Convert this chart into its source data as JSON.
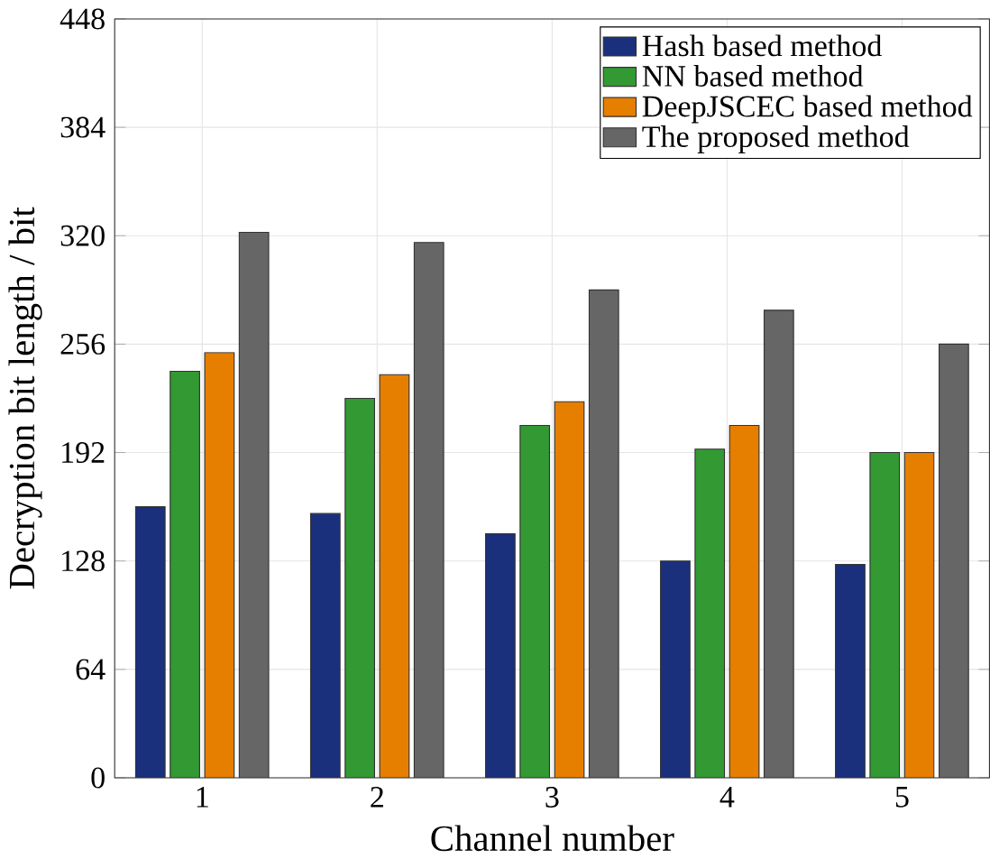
{
  "chart_data": {
    "type": "bar",
    "xlabel": "Channel number",
    "ylabel": "Decryption bit length / bit",
    "categories": [
      "1",
      "2",
      "3",
      "4",
      "5"
    ],
    "series": [
      {
        "name": "Hash based method",
        "color": "#1a307c",
        "values": [
          160,
          156,
          144,
          128,
          126
        ]
      },
      {
        "name": "NN based method",
        "color": "#339933",
        "values": [
          240,
          224,
          208,
          194,
          192
        ]
      },
      {
        "name": "DeepJSCEC based method",
        "color": "#e67e00",
        "values": [
          251,
          238,
          222,
          208,
          192
        ]
      },
      {
        "name": "The proposed method",
        "color": "#666666",
        "values": [
          322,
          316,
          288,
          276,
          256
        ]
      }
    ],
    "ylim": [
      0,
      448
    ],
    "yticks": [
      0,
      64,
      128,
      192,
      256,
      320,
      384,
      448
    ],
    "grid": true,
    "legend": "top right"
  }
}
